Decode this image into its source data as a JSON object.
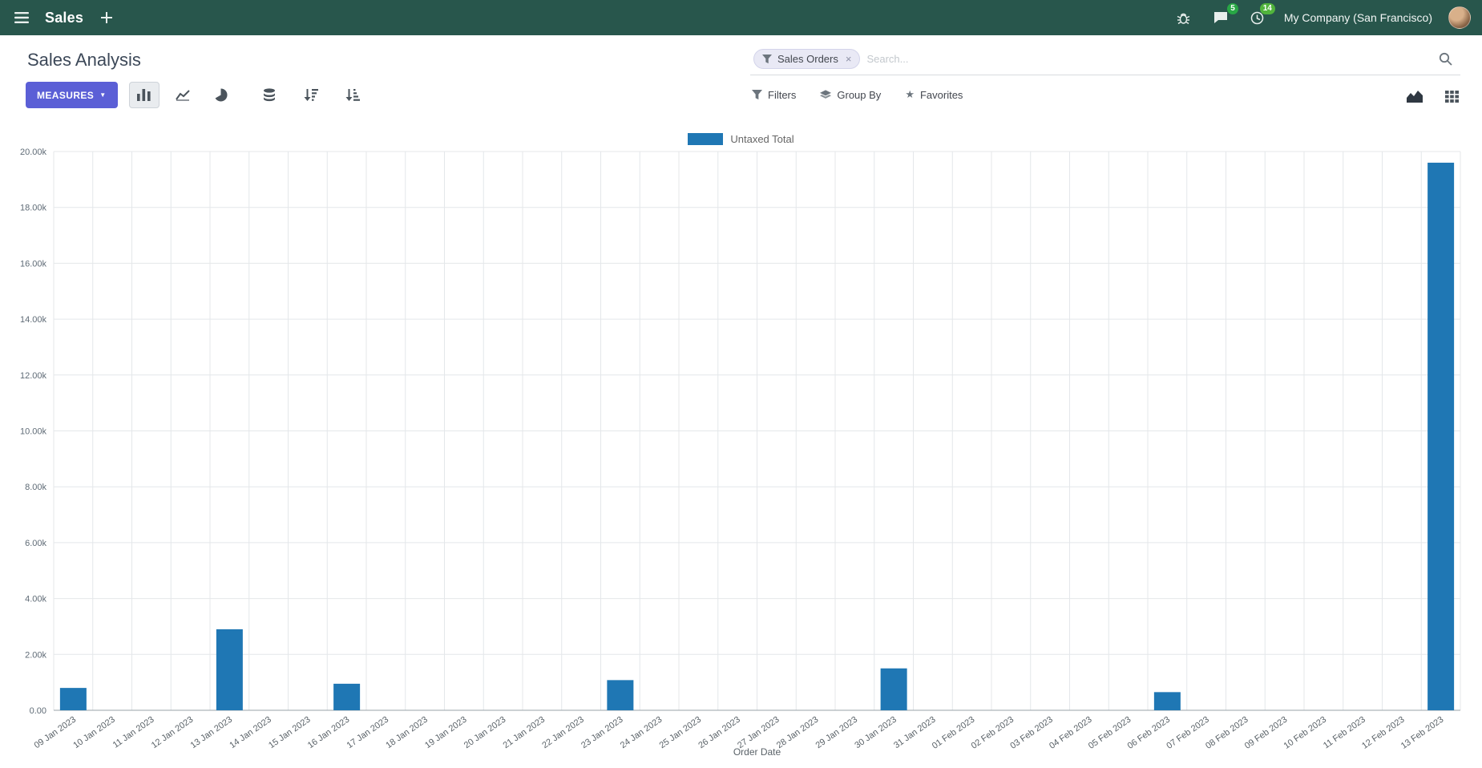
{
  "topbar": {
    "brand": "Sales",
    "company": "My Company (San Francisco)",
    "chat_badge": "5",
    "activity_badge": "14"
  },
  "control_panel": {
    "title": "Sales Analysis",
    "measures_label": "MEASURES",
    "search": {
      "facet_label": "Sales Orders",
      "facet_remove": "×",
      "placeholder": "Search..."
    },
    "filters_label": "Filters",
    "group_by_label": "Group By",
    "favorites_label": "Favorites"
  },
  "colors": {
    "topbar_bg": "#28564c",
    "primary_button": "#5b5fd6",
    "bar": "#1f77b4",
    "badge_green": "#28a745",
    "badge_lime": "#51b43c"
  },
  "chart_data": {
    "type": "bar",
    "title": "",
    "xlabel": "Order Date",
    "ylabel": "",
    "legend_position": "top",
    "grid": true,
    "ylim": [
      0,
      20000
    ],
    "ytick_step": 2000,
    "ytick_labels": [
      "0.00",
      "2.00k",
      "4.00k",
      "6.00k",
      "8.00k",
      "10.00k",
      "12.00k",
      "14.00k",
      "16.00k",
      "18.00k",
      "20.00k"
    ],
    "categories": [
      "09 Jan 2023",
      "10 Jan 2023",
      "11 Jan 2023",
      "12 Jan 2023",
      "13 Jan 2023",
      "14 Jan 2023",
      "15 Jan 2023",
      "16 Jan 2023",
      "17 Jan 2023",
      "18 Jan 2023",
      "19 Jan 2023",
      "20 Jan 2023",
      "21 Jan 2023",
      "22 Jan 2023",
      "23 Jan 2023",
      "24 Jan 2023",
      "25 Jan 2023",
      "26 Jan 2023",
      "27 Jan 2023",
      "28 Jan 2023",
      "29 Jan 2023",
      "30 Jan 2023",
      "31 Jan 2023",
      "01 Feb 2023",
      "02 Feb 2023",
      "03 Feb 2023",
      "04 Feb 2023",
      "05 Feb 2023",
      "06 Feb 2023",
      "07 Feb 2023",
      "08 Feb 2023",
      "09 Feb 2023",
      "10 Feb 2023",
      "11 Feb 2023",
      "12 Feb 2023",
      "13 Feb 2023"
    ],
    "series": [
      {
        "name": "Untaxed Total",
        "color": "#1f77b4",
        "values": [
          800,
          0,
          0,
          0,
          2900,
          0,
          0,
          950,
          0,
          0,
          0,
          0,
          0,
          0,
          1080,
          0,
          0,
          0,
          0,
          0,
          0,
          1500,
          0,
          0,
          0,
          0,
          0,
          0,
          650,
          0,
          0,
          0,
          0,
          0,
          0,
          19600
        ]
      }
    ]
  }
}
